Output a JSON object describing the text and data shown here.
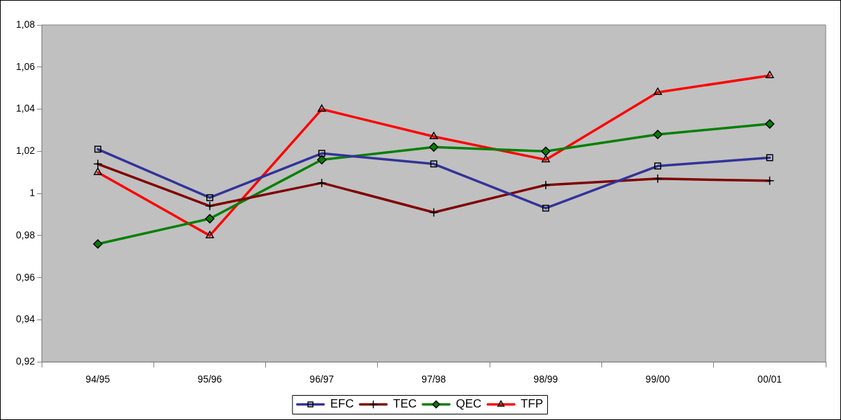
{
  "chart_data": {
    "type": "line",
    "categories": [
      "94/95",
      "95/96",
      "96/97",
      "97/98",
      "98/99",
      "99/00",
      "00/01"
    ],
    "series": [
      {
        "name": "EFC",
        "color": "#333399",
        "marker": "square",
        "values": [
          1.021,
          0.998,
          1.019,
          1.014,
          0.993,
          1.013,
          1.017
        ]
      },
      {
        "name": "TEC",
        "color": "#800000",
        "marker": "cross",
        "values": [
          1.014,
          0.994,
          1.005,
          0.991,
          1.004,
          1.007,
          1.006
        ]
      },
      {
        "name": "QEC",
        "color": "#008000",
        "marker": "diamond",
        "values": [
          0.976,
          0.988,
          1.016,
          1.022,
          1.02,
          1.028,
          1.033
        ]
      },
      {
        "name": "TFP",
        "color": "#ff0000",
        "marker": "triangle",
        "values": [
          1.01,
          0.98,
          1.04,
          1.027,
          1.016,
          1.048,
          1.056
        ]
      }
    ],
    "ylim": [
      0.92,
      1.08
    ],
    "yticks": [
      {
        "value": 0.92,
        "label": "0,92"
      },
      {
        "value": 0.94,
        "label": "0,94"
      },
      {
        "value": 0.96,
        "label": "0,96"
      },
      {
        "value": 0.98,
        "label": "0,98"
      },
      {
        "value": 1,
        "label": "1"
      },
      {
        "value": 1.02,
        "label": "1,02"
      },
      {
        "value": 1.04,
        "label": "1,04"
      },
      {
        "value": 1.06,
        "label": "1,06"
      },
      {
        "value": 1.08,
        "label": "1,08"
      }
    ],
    "grid": false,
    "legend": "bottom",
    "line_style": "solid"
  }
}
